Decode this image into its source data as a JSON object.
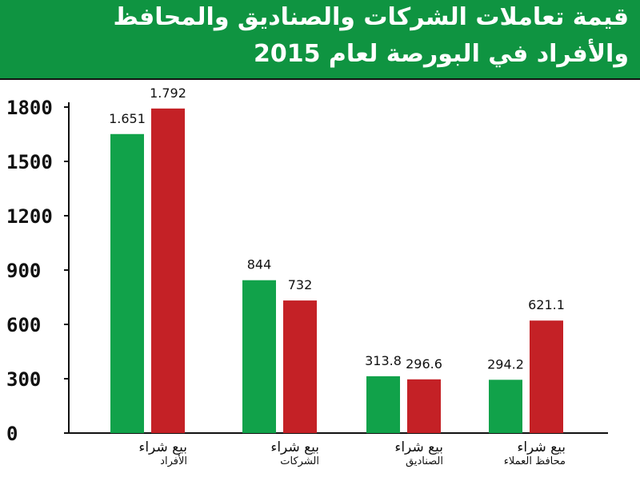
{
  "title": {
    "line1": "قيمة تعاملات الشركات والصناديق والمحافظ",
    "line2": "والأفراد في البورصة لعام 2015"
  },
  "colors": {
    "header_bg": "#0f9441",
    "sell": "#11a24a",
    "buy": "#c42126"
  },
  "chart_data": {
    "type": "bar",
    "categories": [
      "الأفراد",
      "الشركات",
      "الصناديق",
      "محافظ العملاء"
    ],
    "category_sublabel": "بيع شراء",
    "series": [
      {
        "name": "بيع",
        "values": [
          1651,
          844,
          313.8,
          294.2
        ],
        "labels": [
          "1.651",
          "844",
          "313.8",
          "294.2"
        ]
      },
      {
        "name": "شراء",
        "values": [
          1792,
          732,
          296.6,
          621.1
        ],
        "labels": [
          "1.792",
          "732",
          "296.6",
          "621.1"
        ]
      }
    ],
    "yticks": [
      0,
      300,
      600,
      900,
      1200,
      1500,
      1800
    ],
    "ylim": [
      0,
      1800
    ],
    "grid": false,
    "xlabel": "",
    "ylabel": ""
  }
}
